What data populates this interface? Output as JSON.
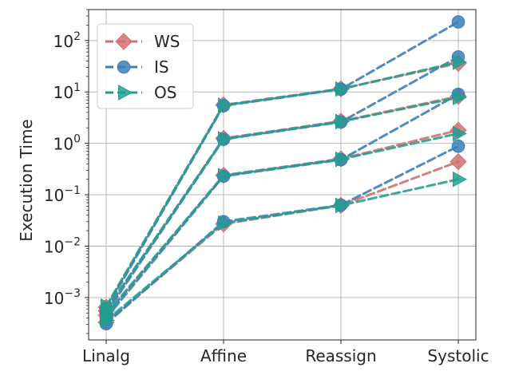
{
  "chart_data": {
    "type": "line",
    "title": "",
    "xlabel": "",
    "ylabel": "Execution Time",
    "yscale": "log",
    "ylim": [
      0.00015,
      400
    ],
    "grid": true,
    "legend_position": "top-left",
    "categories": [
      "Linalg",
      "Affine",
      "Reassign",
      "Systolic"
    ],
    "y_ticks": [
      {
        "value": 0.001,
        "base": "10",
        "exp": "−3"
      },
      {
        "value": 0.01,
        "base": "10",
        "exp": "−2"
      },
      {
        "value": 0.1,
        "base": "10",
        "exp": "−1"
      },
      {
        "value": 1,
        "base": "10",
        "exp": "0"
      },
      {
        "value": 10,
        "base": "10",
        "exp": "1"
      },
      {
        "value": 100,
        "base": "10",
        "exp": "2"
      }
    ],
    "series": [
      {
        "name": "WS",
        "color": "#d07070",
        "marker": "diamond",
        "lines": [
          [
            0.00065,
            5.6,
            11.5,
            36
          ],
          [
            0.00055,
            1.25,
            2.7,
            8.2
          ],
          [
            0.00045,
            0.24,
            0.5,
            1.8
          ],
          [
            0.00033,
            0.027,
            0.062,
            0.44
          ]
        ]
      },
      {
        "name": "IS",
        "color": "#3a7fb8",
        "marker": "circle",
        "lines": [
          [
            0.0006,
            5.4,
            11.3,
            230
          ],
          [
            0.0005,
            1.2,
            2.6,
            48
          ],
          [
            0.0004,
            0.23,
            0.48,
            9.0
          ],
          [
            0.00031,
            0.03,
            0.063,
            0.88
          ]
        ]
      },
      {
        "name": "OS",
        "color": "#259e90",
        "marker": "triangle-right",
        "lines": [
          [
            0.00068,
            5.5,
            11.4,
            38
          ],
          [
            0.00058,
            1.22,
            2.65,
            7.8
          ],
          [
            0.00048,
            0.235,
            0.49,
            1.55
          ],
          [
            0.00036,
            0.028,
            0.062,
            0.2
          ]
        ]
      }
    ]
  }
}
